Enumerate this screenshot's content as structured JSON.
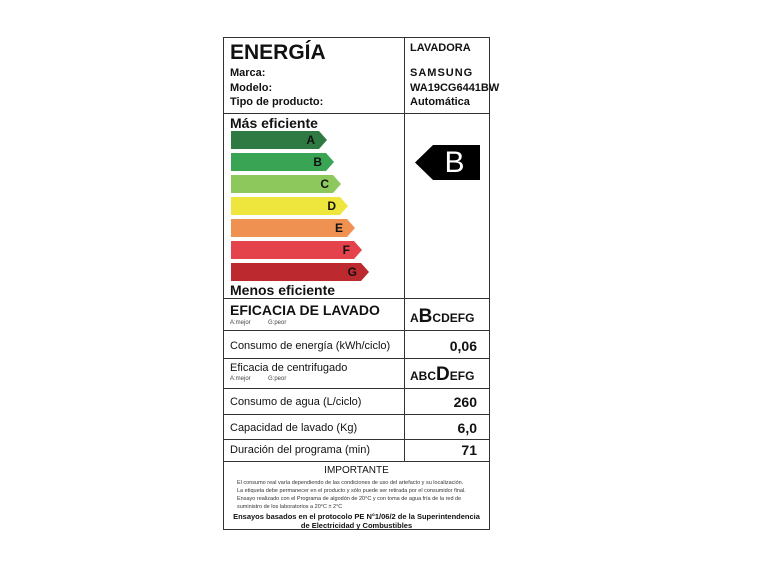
{
  "header": {
    "title": "ENERGÍA",
    "brand_label": "Marca:",
    "model_label": "Modelo:",
    "type_label": "Tipo de producto:",
    "appliance": "LAVADORA",
    "brand": "SAMSUNG",
    "model": "WA19CG6441BW",
    "type": "Automática"
  },
  "scale": {
    "top_label": "Más eficiente",
    "bottom_label": "Menos eficiente",
    "classes": [
      {
        "letter": "A",
        "color": "#2f7a43"
      },
      {
        "letter": "B",
        "color": "#38a454"
      },
      {
        "letter": "C",
        "color": "#8cc85c"
      },
      {
        "letter": "D",
        "color": "#eee63c"
      },
      {
        "letter": "E",
        "color": "#ef9150"
      },
      {
        "letter": "F",
        "color": "#e5434c"
      },
      {
        "letter": "G",
        "color": "#bc2a30"
      }
    ],
    "rating": "B",
    "rating_color": "#000000"
  },
  "wash": {
    "title": "EFICACIA DE LAVADO",
    "best": "A:mejor",
    "worst": "G:peor",
    "before": "A",
    "selected": "B",
    "after": "CDEFG"
  },
  "energy": {
    "label": "Consumo de energía (kWh/ciclo)",
    "value": "0,06"
  },
  "spin": {
    "label": "Eficacia de centrifugado",
    "best": "A:mejor",
    "worst": "G:peor",
    "before": "ABC",
    "selected": "D",
    "after": "EFG"
  },
  "water": {
    "label": "Consumo de agua (L/ciclo)",
    "value": "260"
  },
  "capacity": {
    "label": "Capacidad de lavado (Kg)",
    "value": "6,0"
  },
  "duration": {
    "label": "Duración del programa (min)",
    "value": "71"
  },
  "footer": {
    "title": "IMPORTANTE",
    "lines": [
      "El consumo real varía dependiendo de las condiciones de uso del artefacto y su localización.",
      "La etiqueta debe permanecer en el producto y sólo puede ser retirada por el consumidor final.",
      "Ensayo realizado con el Programa de algodón de 20°C y con toma de agua fría de la red de",
      "suministro de los laboratorios a 20°C ± 2°C"
    ],
    "protocol": "Ensayos basados en el protocolo PE N°1/06/2 de la Superintendencia de Electricidad y Combustibles"
  }
}
